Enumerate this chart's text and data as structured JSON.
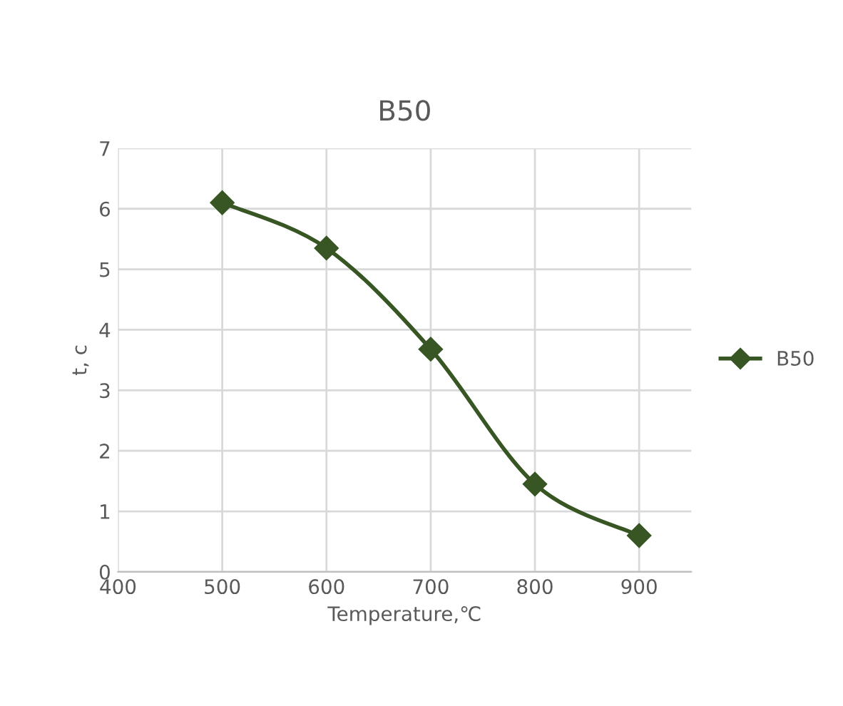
{
  "chart_data": {
    "type": "line",
    "title": "B50",
    "xlabel": "Temperature,℃",
    "ylabel": "t, c",
    "x": [
      500,
      600,
      700,
      800,
      900
    ],
    "series": [
      {
        "name": "B50",
        "color": "#375623",
        "values": [
          6.1,
          5.35,
          3.68,
          1.45,
          0.6
        ]
      }
    ],
    "xlim": [
      400,
      950
    ],
    "xticks": [
      400,
      500,
      600,
      700,
      800,
      900
    ],
    "ylim": [
      0,
      7
    ],
    "yticks": [
      0,
      1,
      2,
      3,
      4,
      5,
      6,
      7
    ],
    "grid": true,
    "legend": "right",
    "marker": "diamond",
    "line_style": "solid"
  }
}
